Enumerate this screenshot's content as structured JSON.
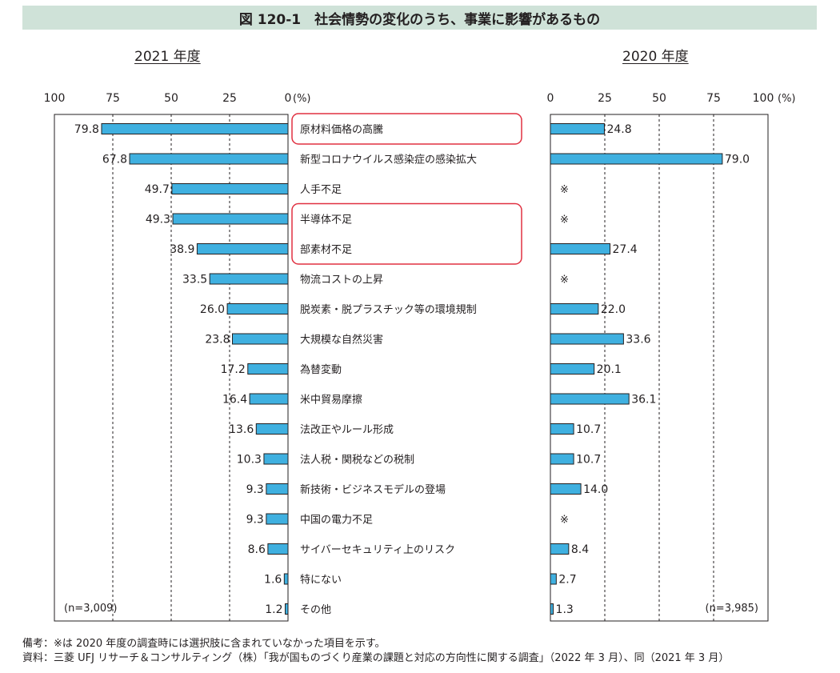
{
  "title": "図 120-1　社会情勢の変化のうち、事業に影響があるもの",
  "panels": {
    "left": {
      "year": "2021 年度",
      "n": "(n=3,009)",
      "ticks": [
        "100",
        "75",
        "50",
        "25",
        "0"
      ],
      "unit": "(%)"
    },
    "right": {
      "year": "2020 年度",
      "n": "(n=3,985)",
      "ticks": [
        "0",
        "25",
        "50",
        "75",
        "100"
      ],
      "unit": "(%)"
    }
  },
  "not_asked_mark": "※",
  "chart_data": {
    "type": "bar",
    "orientation": "horizontal",
    "title": "図 120-1　社会情勢の変化のうち、事業に影響があるもの",
    "unit": "%",
    "xlim": [
      0,
      100
    ],
    "grid": "dashed vertical at 25, 50, 75",
    "bar_color": "#3fb0e0",
    "highlight_color": "#e03040",
    "categories": [
      "原材料価格の高騰",
      "新型コロナウイルス感染症の感染拡大",
      "人手不足",
      "半導体不足",
      "部素材不足",
      "物流コストの上昇",
      "脱炭素・脱プラスチック等の環境規制",
      "大規模な自然災害",
      "為替変動",
      "米中貿易摩擦",
      "法改正やルール形成",
      "法人税・関税などの税制",
      "新技術・ビジネスモデルの登場",
      "中国の電力不足",
      "サイバーセキュリティ上のリスク",
      "特にない",
      "その他"
    ],
    "highlighted": [
      "原材料価格の高騰",
      "半導体不足",
      "部素材不足"
    ],
    "series": [
      {
        "name": "2021 年度",
        "values": [
          79.8,
          67.8,
          49.7,
          49.3,
          38.9,
          33.5,
          26.0,
          23.8,
          17.2,
          16.4,
          13.6,
          10.3,
          9.3,
          9.3,
          8.6,
          1.6,
          1.2
        ],
        "labels": [
          "79.8",
          "67.8",
          "49.7",
          "49.3",
          "38.9",
          "33.5",
          "26.0",
          "23.8",
          "17.2",
          "16.4",
          "13.6",
          "10.3",
          "9.3",
          "9.3",
          "8.6",
          "1.6",
          "1.2"
        ]
      },
      {
        "name": "2020 年度",
        "values": [
          24.8,
          79.0,
          null,
          null,
          27.4,
          null,
          22.0,
          33.6,
          20.1,
          36.1,
          10.7,
          10.7,
          14.0,
          null,
          8.4,
          2.7,
          1.3
        ],
        "labels": [
          "24.8",
          "79.0",
          "※",
          "※",
          "27.4",
          "※",
          "22.0",
          "33.6",
          "20.1",
          "36.1",
          "10.7",
          "10.7",
          "14.0",
          "※",
          "8.4",
          "2.7",
          "1.3"
        ]
      }
    ]
  },
  "notes": [
    "備考：※は 2020 年度の調査時には選択肢に含まれていなかった項目を示す。",
    "資料：三菱 UFJ リサーチ＆コンサルティング（株）「我が国ものづくり産業の課題と対応の方向性に関する調査」（2022 年 3 月）、同（2021 年 3 月）"
  ]
}
